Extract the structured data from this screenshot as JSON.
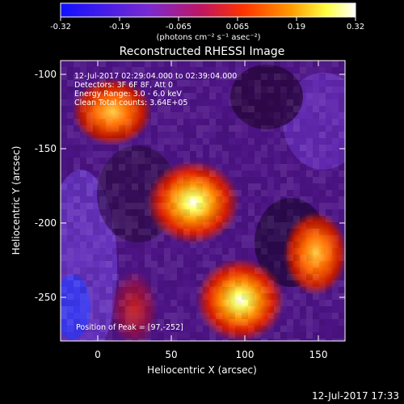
{
  "colorbar": {
    "ticks": [
      "-0.32",
      "-0.19",
      "-0.065",
      "0.065",
      "0.19",
      "0.32"
    ],
    "unit_label": "(photons cm⁻² s⁻¹ asec⁻²)",
    "colormap_stops": [
      "#1010ff",
      "#7a2ad0",
      "#c01560",
      "#ff3300",
      "#ff9900",
      "#ffff40",
      "#ffffff"
    ]
  },
  "plot": {
    "title": "Reconstructed RHESSI Image",
    "info_lines": [
      "12-Jul-2017 02:29:04.000 to 02:39:04.000",
      "Detectors: 3F 6F 8F, Att 0",
      "Energy Range: 3.0 - 6.0 keV",
      "Clean     Total counts: 3.64E+05"
    ],
    "peak_label": "Position of Peak = [97,-252]",
    "x_axis": {
      "label": "Heliocentric X (arcsec)",
      "ticks": [
        "0",
        "50",
        "100",
        "150"
      ],
      "range": [
        -25,
        168
      ]
    },
    "y_axis": {
      "label": "Heliocentric Y (arcsec)",
      "ticks": [
        "-100",
        "-150",
        "-200",
        "-250"
      ],
      "range": [
        -280,
        -88
      ]
    },
    "sources": [
      {
        "name": "upper-left",
        "x": 10,
        "y": -123
      },
      {
        "name": "center",
        "x": 65,
        "y": -185
      },
      {
        "name": "right",
        "x": 148,
        "y": -220
      },
      {
        "name": "peak",
        "x": 97,
        "y": -252
      },
      {
        "name": "lower-left",
        "x": 25,
        "y": -258
      }
    ]
  },
  "footer": {
    "timestamp": "12-Jul-2017 17:33"
  }
}
